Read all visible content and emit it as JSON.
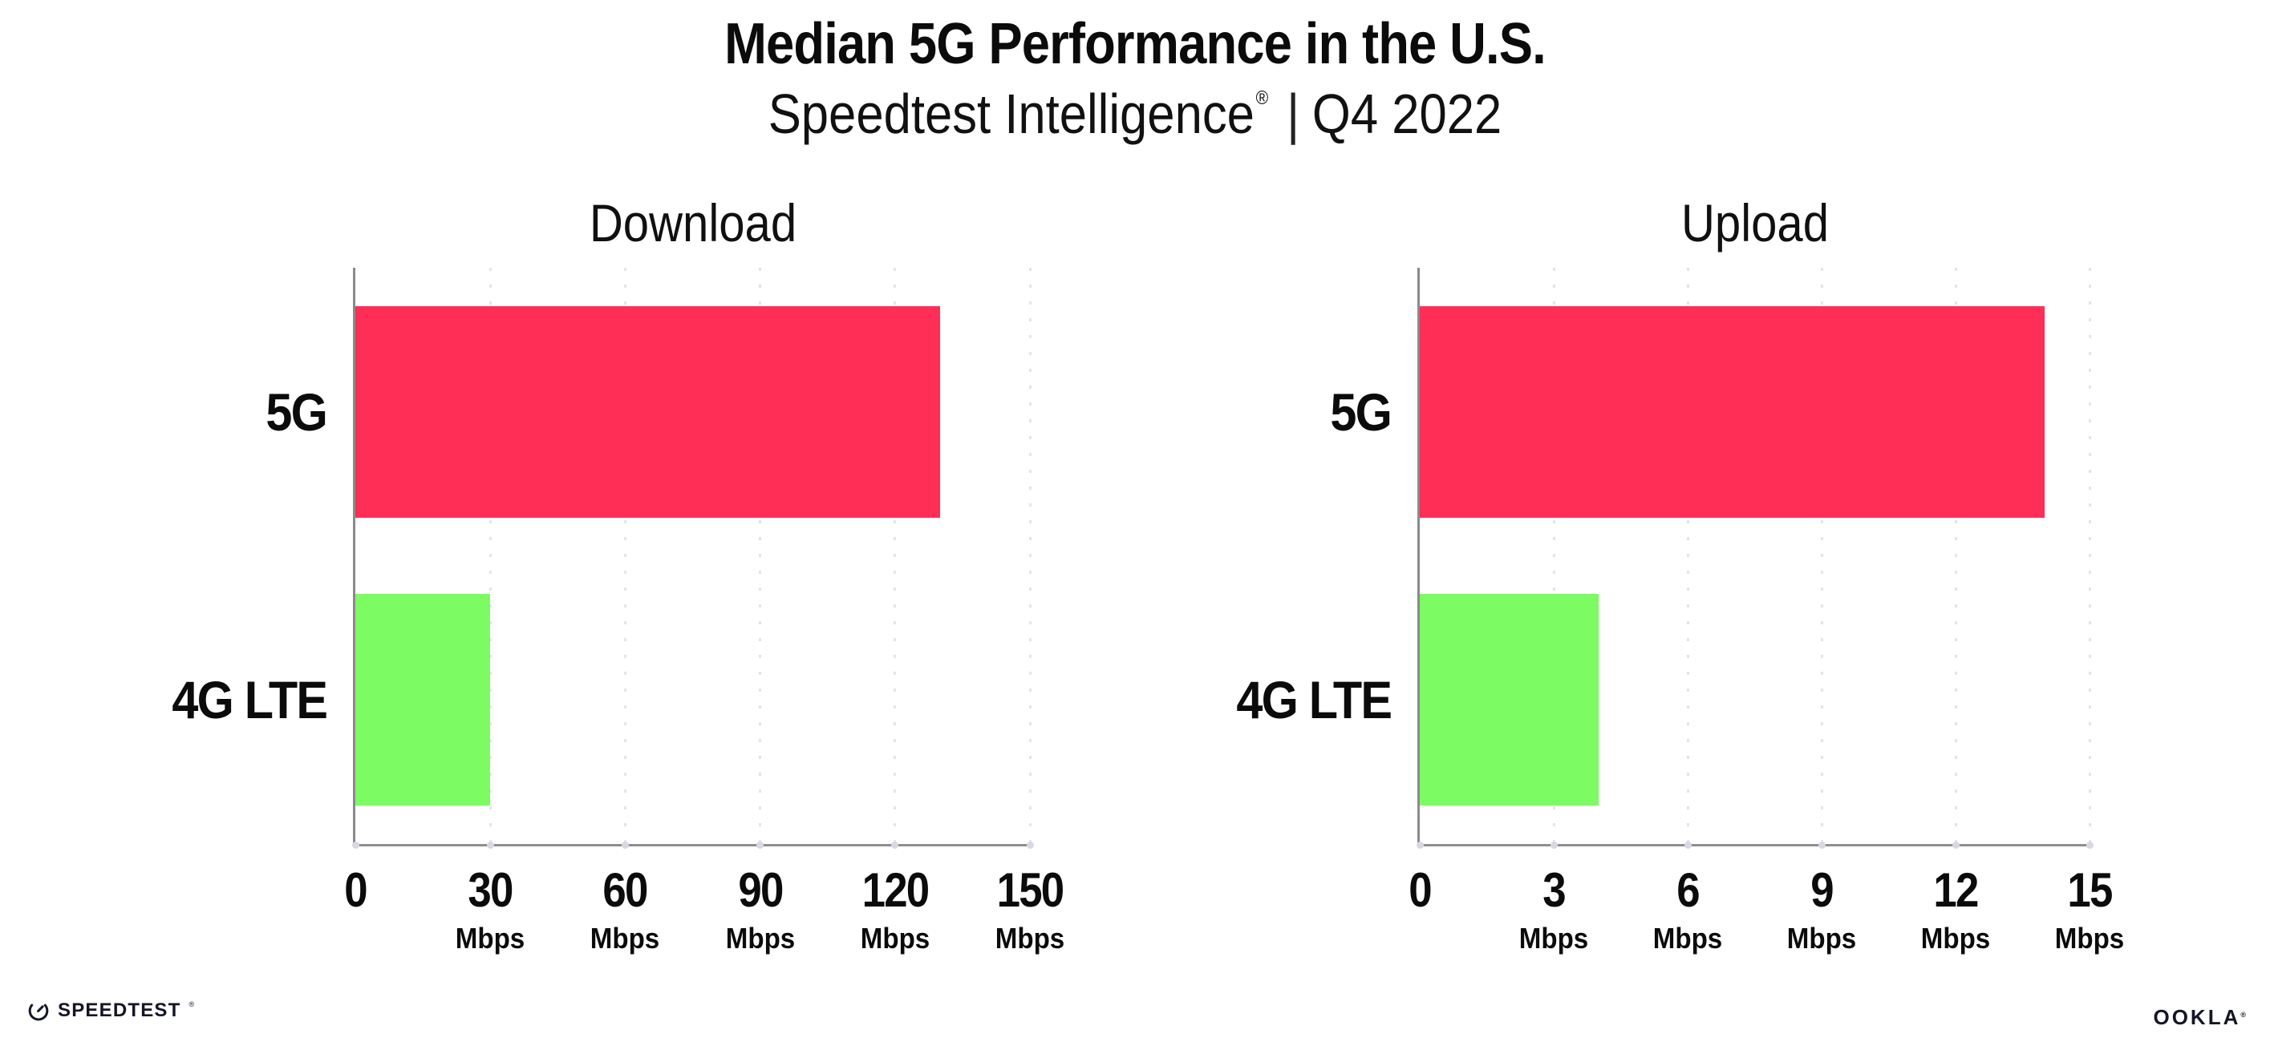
{
  "header": {
    "title": "Median 5G Performance in the U.S.",
    "subtitle": {
      "brand": "Speedtest Intelligence",
      "registered_mark": "®",
      "separator": "|",
      "period": "Q4 2022"
    }
  },
  "chart_data": [
    {
      "type": "bar",
      "orientation": "horizontal",
      "title": "Download",
      "categories": [
        "5G",
        "4G LTE"
      ],
      "values": [
        130,
        30
      ],
      "unit": "Mbps",
      "xlim": [
        0,
        150
      ],
      "xticks": [
        0,
        30,
        60,
        90,
        120,
        150
      ],
      "bar_colors": [
        "#ff2e56",
        "#7dfb63"
      ],
      "grid": "vertical-dotted",
      "legend": "none"
    },
    {
      "type": "bar",
      "orientation": "horizontal",
      "title": "Upload",
      "categories": [
        "5G",
        "4G LTE"
      ],
      "values": [
        14,
        4
      ],
      "unit": "Mbps",
      "xlim": [
        0,
        15
      ],
      "xticks": [
        0,
        3,
        6,
        9,
        12,
        15
      ],
      "bar_colors": [
        "#ff2e56",
        "#7dfb63"
      ],
      "grid": "vertical-dotted",
      "legend": "none"
    }
  ],
  "footer": {
    "speedtest_wordmark": "SPEEDTEST",
    "speedtest_mark": "®",
    "ookla_wordmark": "OOKLA",
    "ookla_mark": "®"
  },
  "colors": {
    "bar_5g": "#ff2e56",
    "bar_4g_lte": "#7dfb63",
    "gridline": "#e4e4ee",
    "axis": "#8a8a8a",
    "text": "#0b0b0b"
  }
}
